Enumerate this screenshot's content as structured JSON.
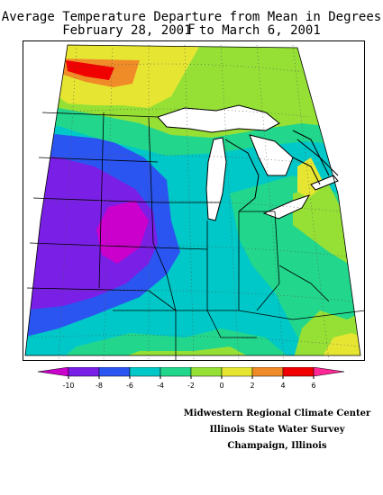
{
  "title": "Average Temperature Departure from Mean in Degrees F",
  "subtitle": "February 28, 2001 to March 6, 2001",
  "legend": {
    "unit": "Degrees F",
    "ticks": [
      "-10",
      "-8",
      "-6",
      "-4",
      "-2",
      "0",
      "2",
      "4",
      "6"
    ],
    "bins": [
      {
        "range": [
          -12,
          -10
        ],
        "color": "#cc00cc"
      },
      {
        "range": [
          -10,
          -8
        ],
        "color": "#7a1fe6"
      },
      {
        "range": [
          -8,
          -6
        ],
        "color": "#2a55f0"
      },
      {
        "range": [
          -6,
          -4
        ],
        "color": "#00c8c8"
      },
      {
        "range": [
          -4,
          -2
        ],
        "color": "#22d68c"
      },
      {
        "range": [
          -2,
          0
        ],
        "color": "#96e036"
      },
      {
        "range": [
          0,
          2
        ],
        "color": "#e6e632"
      },
      {
        "range": [
          2,
          4
        ],
        "color": "#f08c28"
      },
      {
        "range": [
          4,
          6
        ],
        "color": "#f00000"
      },
      {
        "range": [
          6,
          8
        ],
        "color": "#ff2896"
      }
    ]
  },
  "credits": {
    "line1": "Midwestern Regional Climate Center",
    "line2": "Illinois State Water Survey",
    "line3": "Champaign, Illinois"
  }
}
